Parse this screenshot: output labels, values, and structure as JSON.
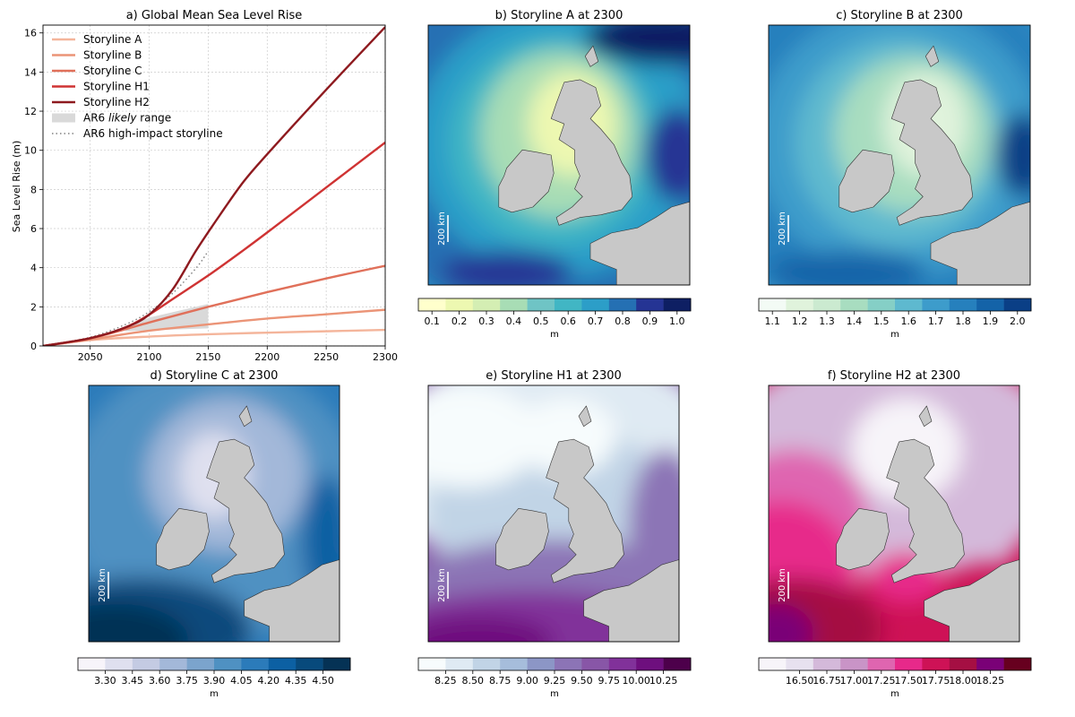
{
  "chart_data": [
    {
      "type": "line",
      "title": "a) Global Mean Sea Level Rise",
      "ylabel": "Sea Level Rise (m)",
      "xlabel": "",
      "xlim": [
        2010,
        2300
      ],
      "ylim": [
        0,
        16.4
      ],
      "xticks": [
        "2050",
        "2100",
        "2150",
        "2200",
        "2250",
        "2300"
      ],
      "yticks": [
        "0",
        "2",
        "4",
        "6",
        "8",
        "10",
        "12",
        "14",
        "16"
      ],
      "grid": true,
      "legend": "top-left",
      "series": [
        {
          "name": "Storyline A",
          "color": "#f4b59b",
          "x": [
            2010,
            2050,
            2100,
            2150,
            2200,
            2250,
            2300
          ],
          "y": [
            0,
            0.3,
            0.48,
            0.6,
            0.68,
            0.75,
            0.82
          ]
        },
        {
          "name": "Storyline B",
          "color": "#eb9477",
          "x": [
            2010,
            2050,
            2100,
            2150,
            2200,
            2250,
            2300
          ],
          "y": [
            0,
            0.33,
            0.78,
            1.1,
            1.4,
            1.62,
            1.85
          ]
        },
        {
          "name": "Storyline C",
          "color": "#e0705a",
          "x": [
            2010,
            2050,
            2100,
            2150,
            2200,
            2250,
            2300
          ],
          "y": [
            0,
            0.38,
            1.2,
            2.0,
            2.75,
            3.45,
            4.1
          ]
        },
        {
          "name": "Storyline H1",
          "color": "#cf3333",
          "x": [
            2010,
            2050,
            2080,
            2100,
            2120,
            2150,
            2180,
            2200,
            2250,
            2300
          ],
          "y": [
            0,
            0.4,
            0.95,
            1.6,
            2.4,
            3.6,
            4.9,
            5.8,
            8.1,
            10.4
          ]
        },
        {
          "name": "Storyline H2",
          "color": "#8e1a1f",
          "x": [
            2010,
            2050,
            2080,
            2100,
            2120,
            2140,
            2160,
            2180,
            2200,
            2250,
            2300
          ],
          "y": [
            0,
            0.4,
            0.95,
            1.6,
            2.9,
            4.9,
            6.7,
            8.4,
            9.8,
            13.1,
            16.3
          ]
        }
      ],
      "band": {
        "name": "AR6 likely range",
        "label_pre": "AR6 ",
        "label_em": "likely",
        "label_post": " range",
        "color": "#d9d9d9",
        "x": [
          2080,
          2100,
          2125,
          2150
        ],
        "lower": [
          0.75,
          0.8,
          0.85,
          0.9
        ],
        "upper": [
          0.95,
          1.45,
          1.8,
          2.15
        ]
      },
      "dotted": {
        "name": "AR6 high-impact storyline",
        "color": "#808080",
        "x": [
          2010,
          2050,
          2080,
          2100,
          2120,
          2140,
          2150
        ],
        "y": [
          0,
          0.45,
          1.1,
          1.75,
          2.7,
          4.0,
          4.85
        ]
      }
    },
    {
      "type": "heatmap",
      "title": "b) Storyline A at 2300",
      "unit": "m",
      "scale_label": "200 km",
      "colorbar_ticks": [
        "0.1",
        "0.2",
        "0.3",
        "0.4",
        "0.5",
        "0.6",
        "0.7",
        "0.8",
        "0.9",
        "1.0"
      ],
      "colors": [
        "#ffffcc",
        "#edf8b1",
        "#d4eeb3",
        "#a8ddb5",
        "#6fc4c5",
        "#41b6c4",
        "#2c9ec8",
        "#2570b3",
        "#253494",
        "#0e1f63"
      ]
    },
    {
      "type": "heatmap",
      "title": "c) Storyline B at 2300",
      "unit": "m",
      "scale_label": "200 km",
      "colorbar_ticks": [
        "1.1",
        "1.2",
        "1.3",
        "1.4",
        "1.5",
        "1.6",
        "1.7",
        "1.8",
        "1.9",
        "2.0"
      ],
      "colors": [
        "#f3fbf5",
        "#e0f3dc",
        "#cbead0",
        "#a8ddc0",
        "#85cfc6",
        "#5eb9cf",
        "#3d9ccb",
        "#2680bd",
        "#1463a8",
        "#0a3f86"
      ]
    },
    {
      "type": "heatmap",
      "title": "d) Storyline C at 2300",
      "unit": "m",
      "scale_label": "200 km",
      "colorbar_ticks": [
        "3.30",
        "3.45",
        "3.60",
        "3.75",
        "3.90",
        "4.05",
        "4.20",
        "4.35",
        "4.50"
      ],
      "colors": [
        "#f7f4fa",
        "#dfe0ef",
        "#c4cbe3",
        "#a3b8d9",
        "#7ba4cd",
        "#4f91c2",
        "#2b7bba",
        "#0c60a3",
        "#084a7c",
        "#053255"
      ]
    },
    {
      "type": "heatmap",
      "title": "e) Storyline H1 at 2300",
      "unit": "m",
      "scale_label": "200 km",
      "colorbar_ticks": [
        "8.25",
        "8.50",
        "8.75",
        "9.00",
        "9.25",
        "9.50",
        "9.75",
        "10.00",
        "10.25"
      ],
      "colors": [
        "#f7fcfd",
        "#dfeaf3",
        "#c1d4e6",
        "#a6bddb",
        "#8c96c6",
        "#8c74b6",
        "#8856a7",
        "#81319a",
        "#6e0f7e",
        "#4d004b"
      ]
    },
    {
      "type": "heatmap",
      "title": "f) Storyline H2 at 2300",
      "unit": "m",
      "scale_label": "200 km",
      "colorbar_ticks": [
        "16.50",
        "16.75",
        "17.00",
        "17.25",
        "17.50",
        "17.75",
        "18.00",
        "18.25"
      ],
      "colors": [
        "#f7f4f9",
        "#e7e1ef",
        "#d4b9da",
        "#c994c7",
        "#df65b0",
        "#e7298a",
        "#ce1256",
        "#a50f43",
        "#7a0177",
        "#67001f"
      ]
    }
  ]
}
